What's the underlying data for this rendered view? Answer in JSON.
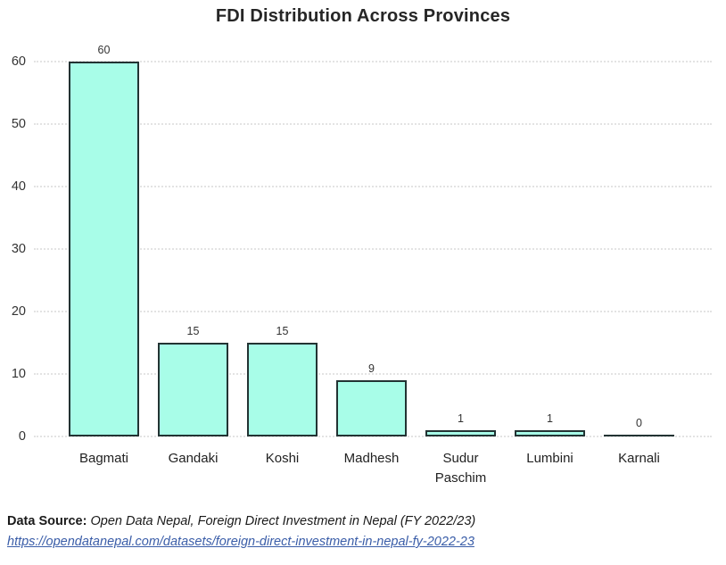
{
  "chart_data": {
    "type": "bar",
    "title": "FDI Distribution Across Provinces",
    "categories": [
      "Bagmati",
      "Gandaki",
      "Koshi",
      "Madhesh",
      "Sudur Paschim",
      "Lumbini",
      "Karnali"
    ],
    "values": [
      60,
      15,
      15,
      9,
      1,
      1,
      0
    ],
    "bar_labels": [
      "60",
      "15",
      "15",
      "9",
      "1",
      "1",
      "0"
    ],
    "xlabel": "",
    "ylabel": "",
    "ylim": [
      0,
      60
    ],
    "yticks": [
      0,
      10,
      20,
      30,
      40,
      50,
      60
    ],
    "grid": "horizontal-dotted",
    "legend": "none",
    "colors": {
      "bar_fill": "#a8fde8",
      "bar_border": "#223333",
      "gridline": "#e3e3e3",
      "title_text": "#262626",
      "tick_text": "#333333",
      "axis_label_text": "#222222",
      "background": "#ffffff"
    }
  },
  "footer": {
    "source_label": "Data Source:",
    "source_text": "Open Data Nepal, Foreign Direct Investment in Nepal (FY 2022/23)",
    "link_text": "https://opendatanepal.com/datasets/foreign-direct-investment-in-nepal-fy-2022-23",
    "link_href": "https://opendatanepal.com/datasets/foreign-direct-investment-in-nepal-fy-2022-23",
    "link_color": "#3a5da8"
  }
}
